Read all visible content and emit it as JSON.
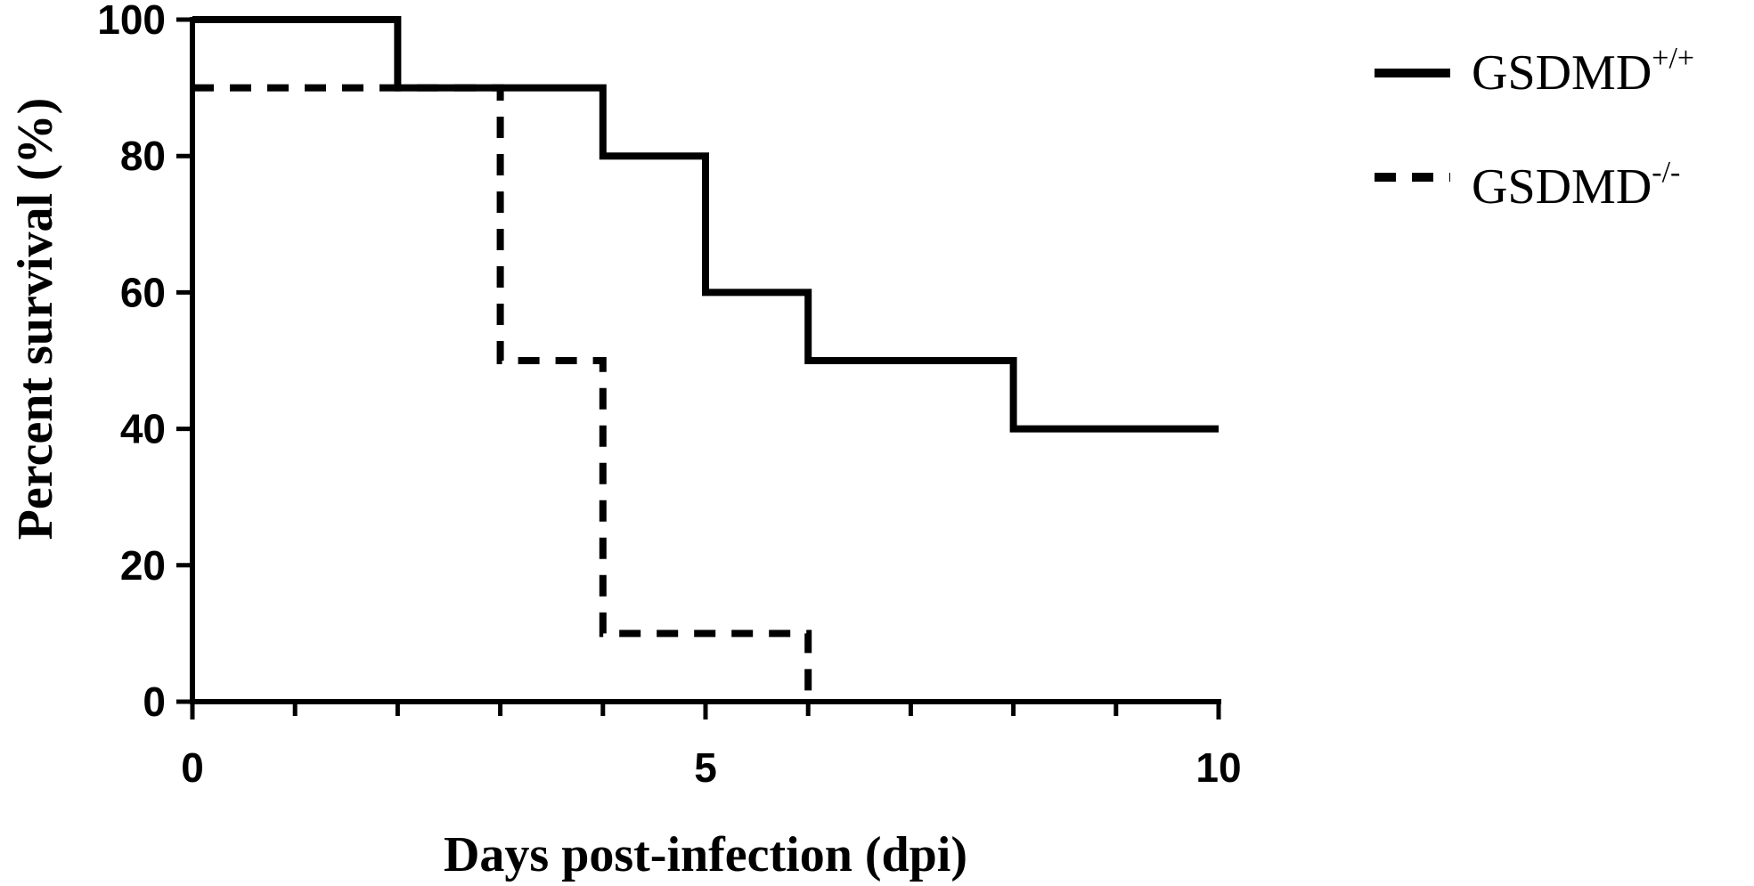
{
  "chart_data": {
    "type": "line",
    "step": true,
    "xlabel": "Days post-infection (dpi)",
    "ylabel": "Percent survival (%)",
    "xlim": [
      0,
      10
    ],
    "ylim": [
      0,
      100
    ],
    "x_ticks_major": [
      0,
      5,
      10
    ],
    "x_tick_labels": [
      "0",
      "5",
      "10"
    ],
    "x_ticks_minor": [
      1,
      2,
      3,
      4,
      6,
      7,
      8,
      9
    ],
    "y_ticks": [
      0,
      20,
      40,
      60,
      80,
      100
    ],
    "y_tick_labels": [
      "0",
      "20",
      "40",
      "60",
      "80",
      "100"
    ],
    "grid": false,
    "legend_position": "top-right",
    "series": [
      {
        "name_base": "GSDMD",
        "name_sup": "+/+",
        "style": "solid",
        "color": "#000000",
        "x": [
          0,
          2,
          4,
          5,
          6,
          8,
          10
        ],
        "y": [
          100,
          90,
          80,
          60,
          50,
          40,
          40
        ]
      },
      {
        "name_base": "GSDMD",
        "name_sup": "-/-",
        "style": "dashed",
        "color": "#000000",
        "x": [
          0,
          3,
          4,
          6
        ],
        "y": [
          90,
          50,
          10,
          0
        ]
      }
    ]
  }
}
